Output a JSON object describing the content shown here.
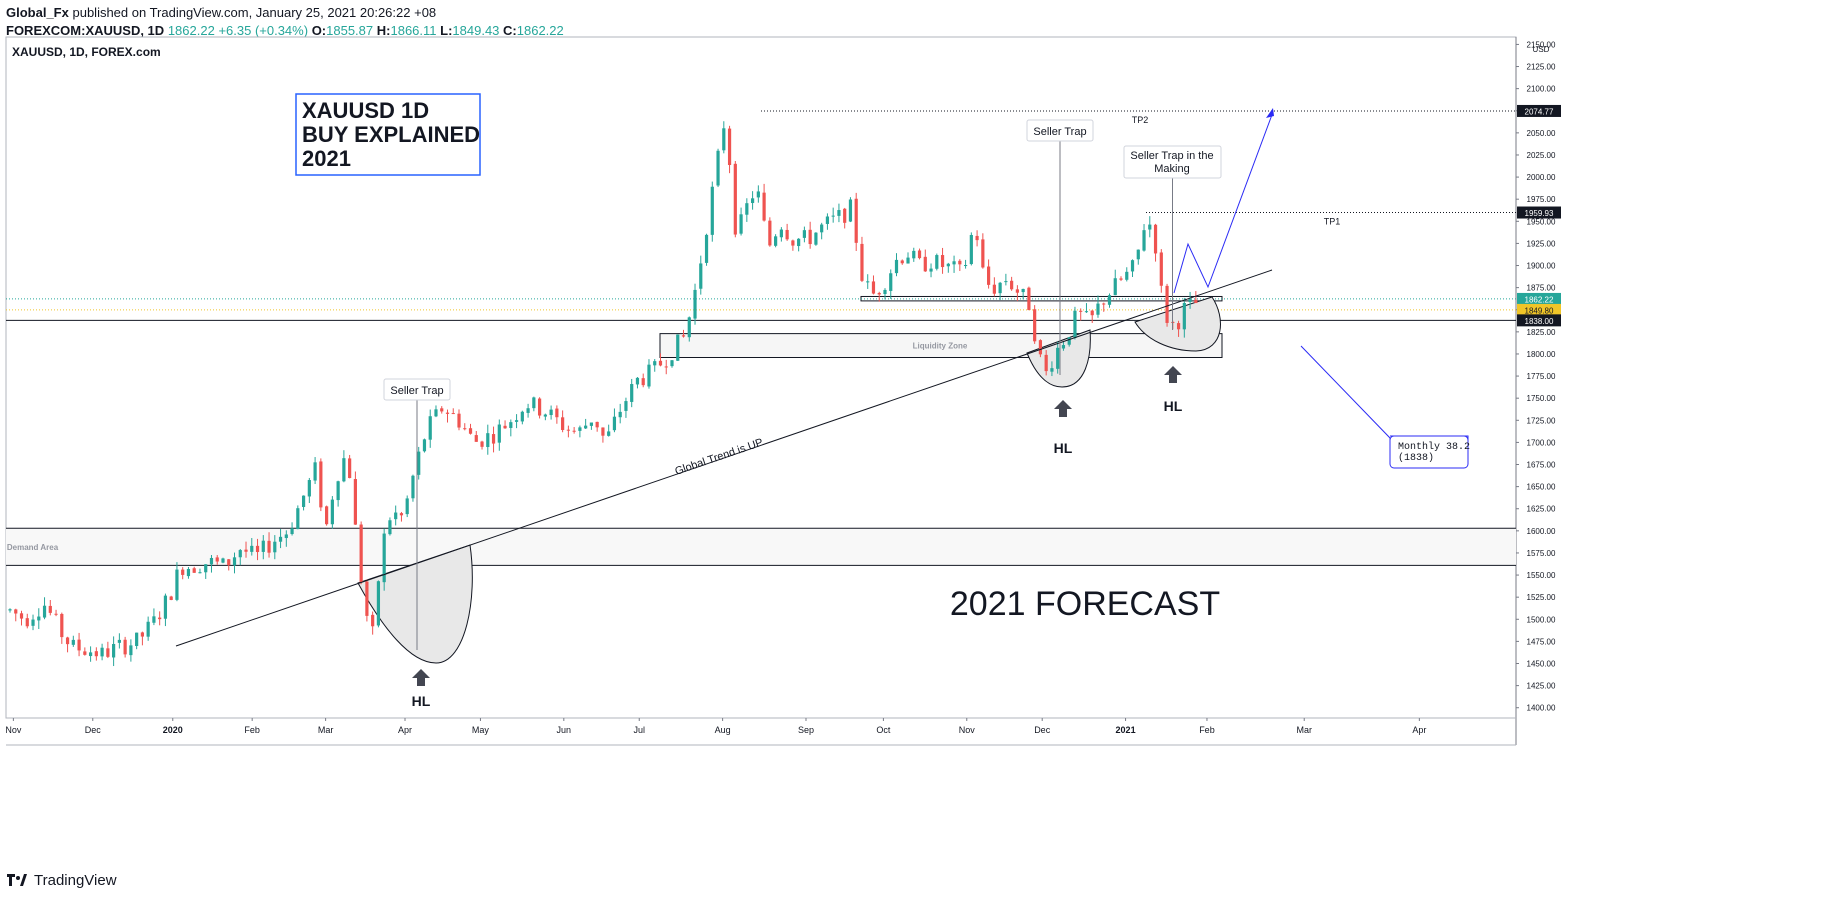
{
  "header": {
    "author": "Global_Fx",
    "published_text": "published on TradingView.com, January 25, 2021 20:26:22 +08",
    "symbol": "FOREXCOM:XAUUSD, 1D",
    "last": "1862.22",
    "change": "+6.35 (+0.34%)",
    "open_label": "O:",
    "open": "1855.87",
    "high_label": "H:",
    "high": "1866.11",
    "low_label": "L:",
    "low": "1849.43",
    "close_label": "C:",
    "close": "1862.22"
  },
  "chart_title": "XAUUSD, 1D, FOREX.com",
  "title_box": [
    "XAUUSD 1D",
    "BUY EXPLAINED",
    "2021"
  ],
  "forecast_text": "2021 FORECAST",
  "footer": {
    "brand": "TradingView"
  },
  "colors": {
    "up": "#26a69a",
    "down": "#ef5350",
    "accent_blue": "#2962ff",
    "drawing_blue": "#2b2bf5"
  },
  "chart_data": {
    "type": "candlestick",
    "title": "XAUUSD, 1D, FOREX.com",
    "currency": "USD",
    "ylim": [
      1385,
      2155
    ],
    "y_ticks": [
      1400,
      1425,
      1450,
      1475,
      1500,
      1525,
      1550,
      1575,
      1600,
      1625,
      1650,
      1675,
      1700,
      1725,
      1750,
      1775,
      1800,
      1825,
      1850,
      1875,
      1900,
      1925,
      1950,
      1975,
      2000,
      2025,
      2050,
      2075,
      2100,
      2125,
      2150
    ],
    "x_ticks": [
      {
        "label": "Nov",
        "t": 0.085
      },
      {
        "label": "Dec",
        "t": 2.085
      },
      {
        "label": "2020",
        "t": 4.1,
        "bold": true
      },
      {
        "label": "Feb",
        "t": 6.1
      },
      {
        "label": "Mar",
        "t": 7.95
      },
      {
        "label": "Apr",
        "t": 9.95
      },
      {
        "label": "May",
        "t": 11.85
      },
      {
        "label": "Jun",
        "t": 13.95
      },
      {
        "label": "Jul",
        "t": 15.85
      },
      {
        "label": "Aug",
        "t": 17.95
      },
      {
        "label": "Sep",
        "t": 20.05
      },
      {
        "label": "Oct",
        "t": 22.0
      },
      {
        "label": "Nov",
        "t": 24.1
      },
      {
        "label": "Dec",
        "t": 26.0
      },
      {
        "label": "2021",
        "t": 28.1,
        "bold": true
      },
      {
        "label": "Feb",
        "t": 30.15
      },
      {
        "label": "Mar",
        "t": 32.6
      },
      {
        "label": "Apr",
        "t": 35.5
      }
    ],
    "price_path": [
      [
        0,
        1510
      ],
      [
        0.4,
        1500
      ],
      [
        0.85,
        1518
      ],
      [
        1.1,
        1500
      ],
      [
        1.35,
        1480
      ],
      [
        1.6,
        1468
      ],
      [
        2.0,
        1465
      ],
      [
        2.3,
        1460
      ],
      [
        2.7,
        1468
      ],
      [
        3.2,
        1475
      ],
      [
        3.6,
        1495
      ],
      [
        4.0,
        1525
      ],
      [
        4.3,
        1560
      ],
      [
        4.6,
        1560
      ],
      [
        5.0,
        1565
      ],
      [
        5.4,
        1560
      ],
      [
        5.8,
        1580
      ],
      [
        6.2,
        1570
      ],
      [
        6.6,
        1588
      ],
      [
        7.0,
        1600
      ],
      [
        7.4,
        1640
      ],
      [
        7.7,
        1670
      ],
      [
        7.95,
        1600
      ],
      [
        8.2,
        1660
      ],
      [
        8.5,
        1690
      ],
      [
        8.75,
        1580
      ],
      [
        8.95,
        1510
      ],
      [
        9.15,
        1480
      ],
      [
        9.35,
        1580
      ],
      [
        9.6,
        1620
      ],
      [
        9.9,
        1615
      ],
      [
        10.2,
        1670
      ],
      [
        10.5,
        1715
      ],
      [
        10.9,
        1740
      ],
      [
        11.3,
        1725
      ],
      [
        11.7,
        1700
      ],
      [
        12.2,
        1710
      ],
      [
        12.6,
        1725
      ],
      [
        13.0,
        1745
      ],
      [
        13.5,
        1735
      ],
      [
        13.9,
        1720
      ],
      [
        14.3,
        1710
      ],
      [
        14.7,
        1730
      ],
      [
        15.0,
        1700
      ],
      [
        15.4,
        1740
      ],
      [
        15.8,
        1770
      ],
      [
        16.2,
        1780
      ],
      [
        16.6,
        1800
      ],
      [
        17.0,
        1820
      ],
      [
        17.3,
        1880
      ],
      [
        17.6,
        1960
      ],
      [
        17.85,
        2025
      ],
      [
        18.0,
        2065
      ],
      [
        18.15,
        2010
      ],
      [
        18.3,
        1930
      ],
      [
        18.5,
        1960
      ],
      [
        18.8,
        1990
      ],
      [
        19.1,
        1920
      ],
      [
        19.4,
        1950
      ],
      [
        19.7,
        1930
      ],
      [
        20.1,
        1930
      ],
      [
        20.5,
        1945
      ],
      [
        20.9,
        1955
      ],
      [
        21.2,
        1965
      ],
      [
        21.45,
        1890
      ],
      [
        21.7,
        1865
      ],
      [
        22.0,
        1880
      ],
      [
        22.3,
        1905
      ],
      [
        22.6,
        1915
      ],
      [
        22.9,
        1900
      ],
      [
        23.2,
        1905
      ],
      [
        23.5,
        1900
      ],
      [
        23.8,
        1895
      ],
      [
        24.0,
        1890
      ],
      [
        24.3,
        1950
      ],
      [
        24.55,
        1880
      ],
      [
        24.8,
        1875
      ],
      [
        25.1,
        1885
      ],
      [
        25.4,
        1870
      ],
      [
        25.7,
        1855
      ],
      [
        25.9,
        1800
      ],
      [
        26.1,
        1778
      ],
      [
        26.3,
        1800
      ],
      [
        26.6,
        1820
      ],
      [
        26.9,
        1845
      ],
      [
        27.2,
        1835
      ],
      [
        27.5,
        1860
      ],
      [
        27.8,
        1875
      ],
      [
        28.1,
        1888
      ],
      [
        28.35,
        1900
      ],
      [
        28.55,
        1945
      ],
      [
        28.7,
        1948
      ],
      [
        28.85,
        1925
      ],
      [
        29.0,
        1870
      ],
      [
        29.15,
        1840
      ],
      [
        29.35,
        1830
      ],
      [
        29.55,
        1850
      ],
      [
        29.8,
        1855
      ],
      [
        30.0,
        1862
      ]
    ],
    "annotations": [
      {
        "kind": "label",
        "text": "Seller Trap",
        "t": 8.2,
        "p": 1757
      },
      {
        "kind": "label",
        "text": "Seller Trap",
        "t": 25.9,
        "p": 2035
      },
      {
        "kind": "label",
        "text": "Seller Trap in the Making",
        "t": 28.35,
        "p": 1995
      },
      {
        "kind": "text",
        "text": "Global Trend is UP"
      },
      {
        "kind": "zone",
        "text": "Liquidity Zone",
        "from": 1796,
        "to": 1823
      },
      {
        "kind": "zone",
        "text": "Monthly Demand Area",
        "from": 1561,
        "to": 1603
      },
      {
        "kind": "target",
        "text": "TP2",
        "price": 2074.77
      },
      {
        "kind": "target",
        "text": "TP1",
        "price": 1959.93
      },
      {
        "kind": "hl",
        "text": "HL",
        "t": 8.95,
        "p": 1440
      },
      {
        "kind": "hl",
        "text": "HL",
        "t": 26.1,
        "p": 1745
      },
      {
        "kind": "hl",
        "text": "HL",
        "t": 28.55,
        "p": 1772
      },
      {
        "kind": "note",
        "text": "Monthly 38.2 (1838)"
      }
    ],
    "price_labels": [
      {
        "value": "2074.77",
        "price": 2074.77,
        "style": "dark"
      },
      {
        "value": "1959.93",
        "price": 1959.93,
        "style": "dark"
      },
      {
        "value": "1862.22",
        "price": 1862.22,
        "style": "up"
      },
      {
        "value": "1849.80",
        "price": 1849.8,
        "style": "yellow"
      },
      {
        "value": "1838.00",
        "price": 1838.0,
        "style": "dark"
      }
    ]
  }
}
